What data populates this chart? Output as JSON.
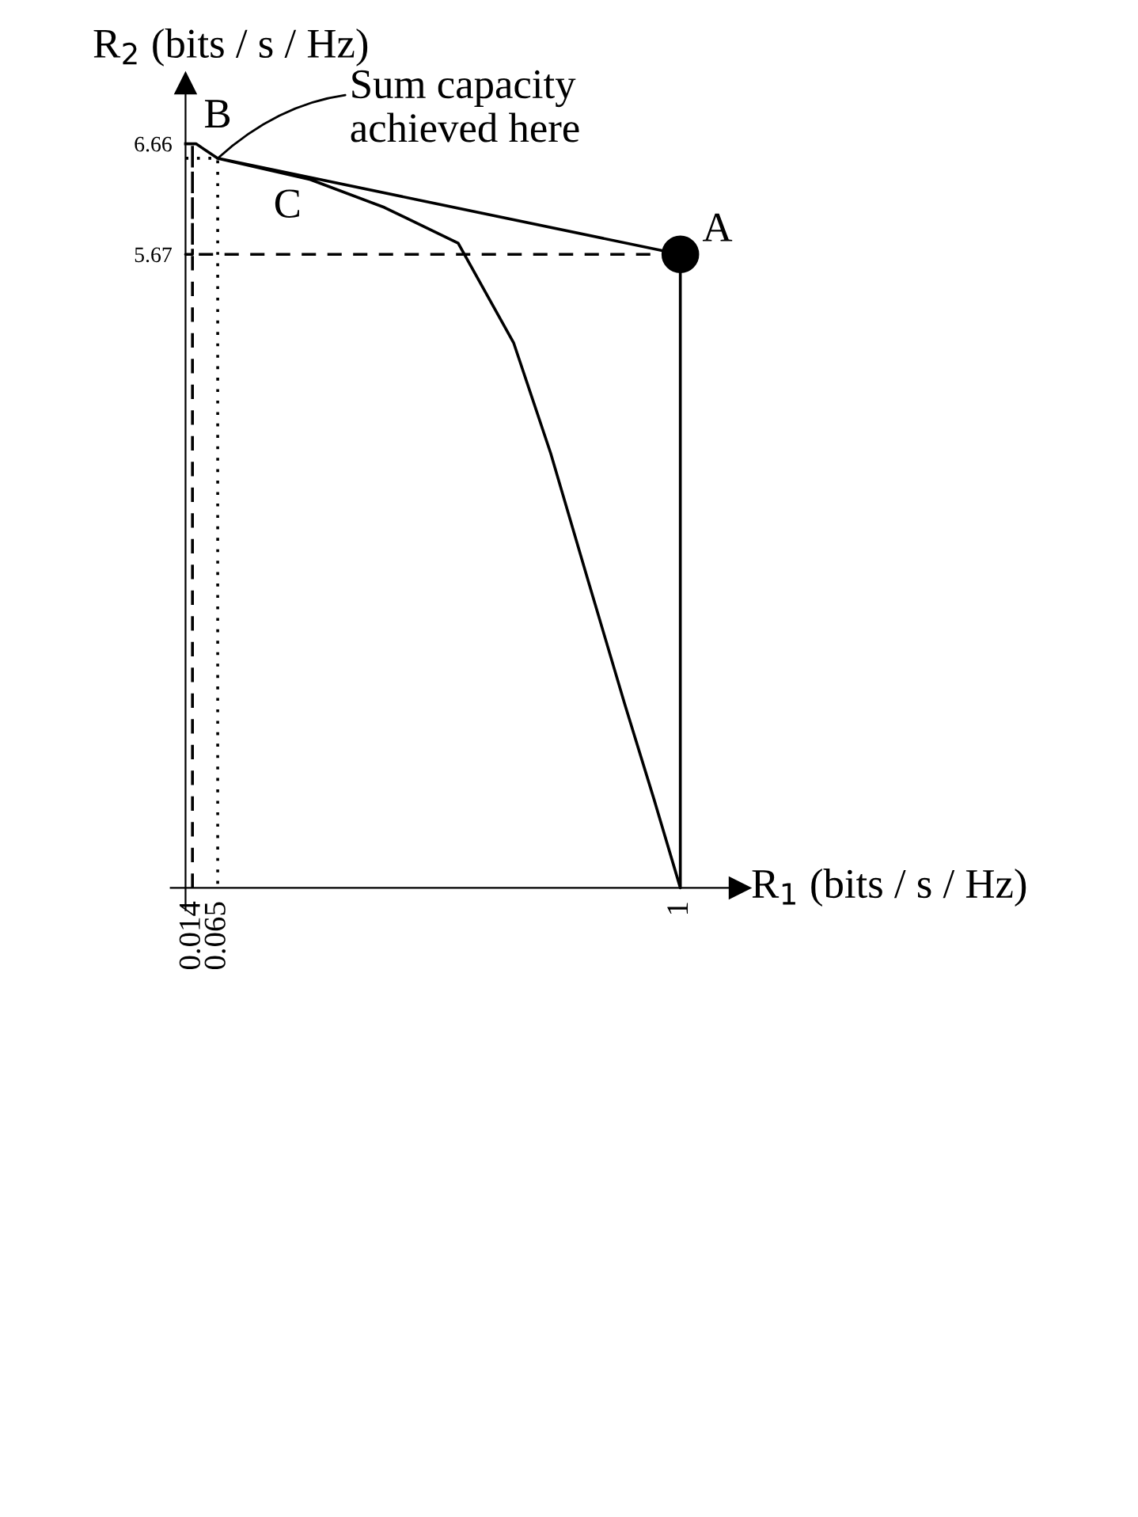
{
  "chart_data": {
    "type": "line",
    "xlabel": "R$_{1}$ (bits / s / Hz)",
    "ylabel": "R$_{2}$ (bits / s / Hz)",
    "xlim": [
      -0.03,
      1.12
    ],
    "ylim": [
      -0.2,
      7.2
    ],
    "xticks": [
      0.014,
      0.065,
      1
    ],
    "yticks": [
      5.67,
      6.66
    ],
    "legend": false,
    "series": [
      {
        "color": "#000000",
        "line_style": "solid",
        "x": [
          0,
          0.021,
          0.065,
          0.252,
          0.402,
          0.551,
          0.663,
          0.738,
          0.813,
          0.888,
          0.947,
          1,
          1,
          0.065
        ],
        "values": [
          6.66,
          6.66,
          6.53,
          6.34,
          6.09,
          5.77,
          4.88,
          3.89,
          2.76,
          1.64,
          0.79,
          0,
          5.67,
          6.53
        ]
      },
      {
        "color": "#000000",
        "line_style": "dashed",
        "x": [
          0.014,
          0.014,
          0.014,
          0,
          1
        ],
        "values": [
          0,
          6.66,
          5.67,
          5.67,
          5.67
        ]
      },
      {
        "color": "#000000",
        "line_style": "dotted",
        "x": [
          0,
          0.065,
          0.065
        ],
        "values": [
          6.53,
          6.53,
          0
        ]
      },
      {
        "type": "scatter",
        "color": "#000000",
        "marker": "circle",
        "x": [
          1
        ],
        "values": [
          5.67
        ]
      }
    ],
    "annotations": [
      {
        "text": "A",
        "x": 1,
        "y": 5.67
      },
      {
        "text": "B",
        "x": 0.065,
        "y": 6.53
      },
      {
        "text": "C",
        "x": 0.252,
        "y": 6.34
      },
      {
        "text": "Sum capacity\nachieved here",
        "x": 0.065,
        "y": 6.53
      }
    ]
  }
}
